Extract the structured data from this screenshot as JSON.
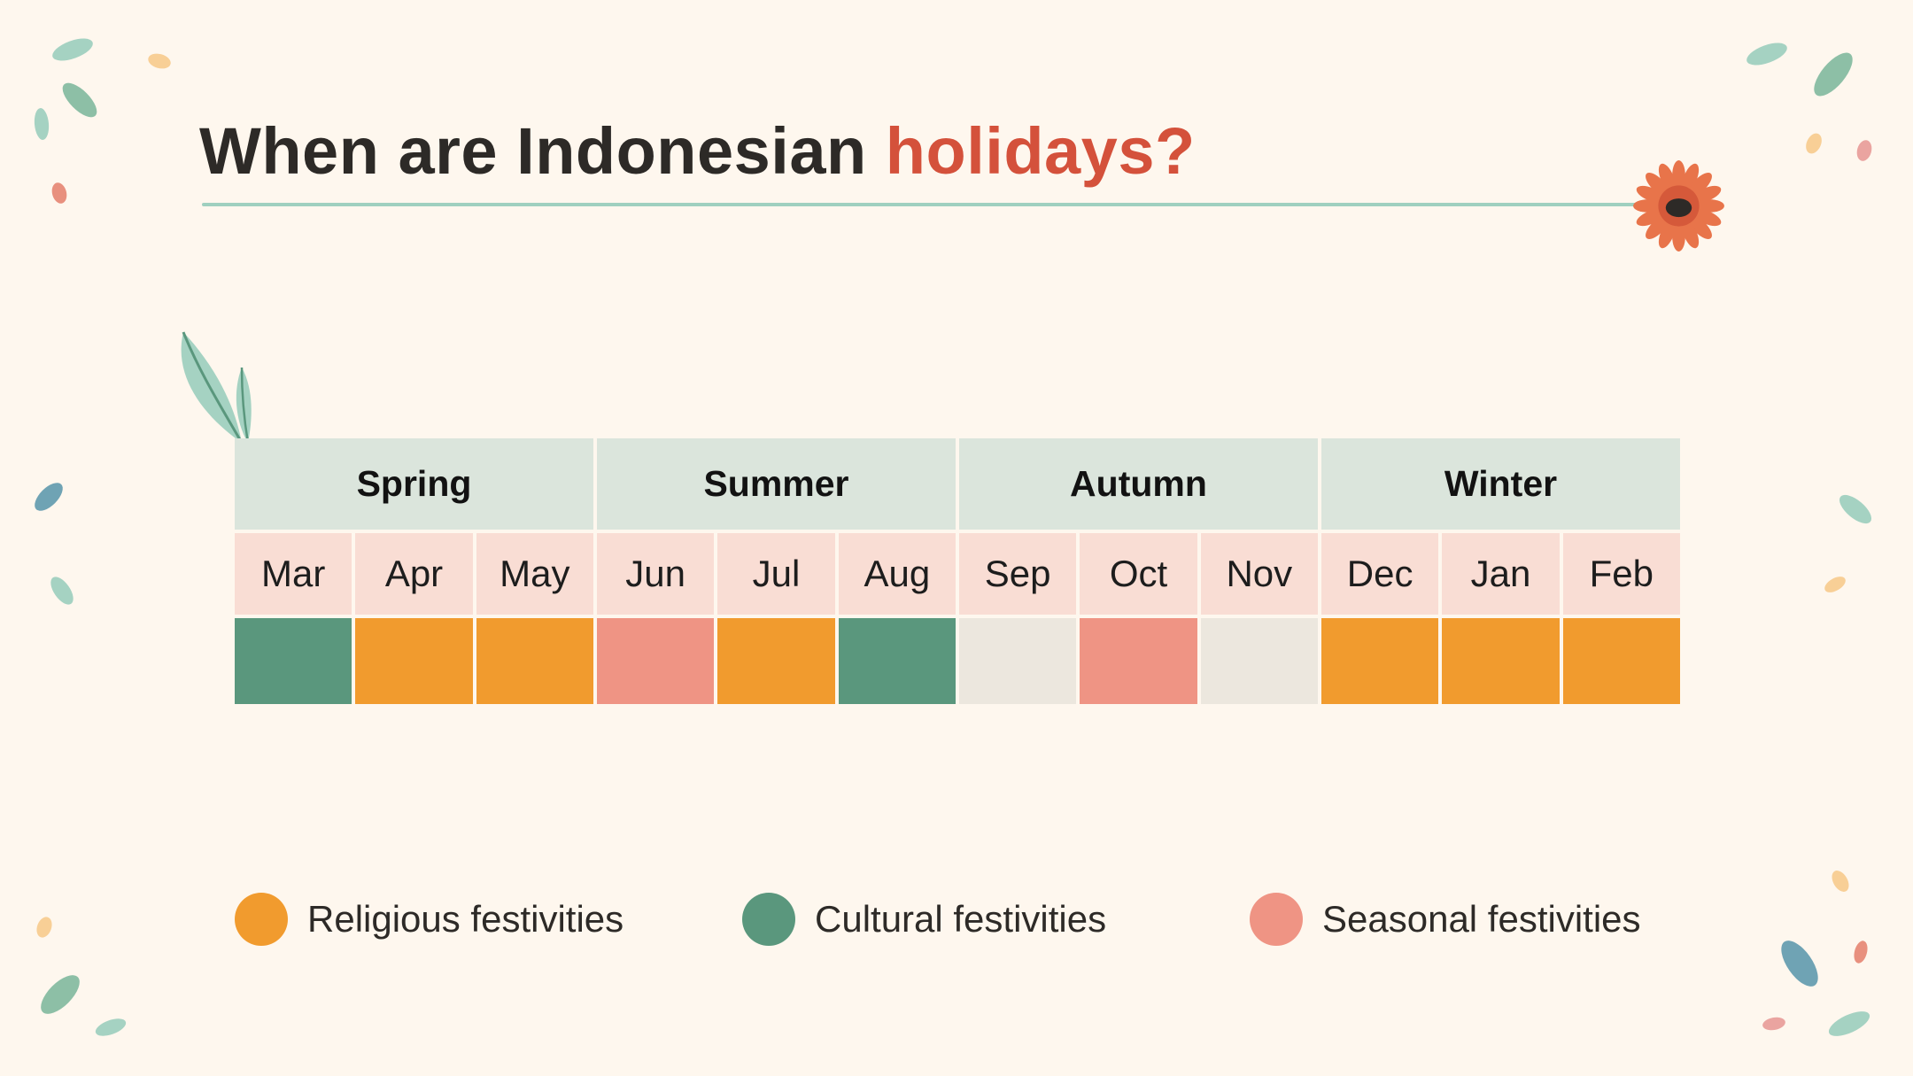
{
  "title": {
    "prefix": "When are Indonesian ",
    "accent": "holidays?"
  },
  "seasons": [
    {
      "label": "Spring"
    },
    {
      "label": "Summer"
    },
    {
      "label": "Autumn"
    },
    {
      "label": "Winter"
    }
  ],
  "months": [
    "Mar",
    "Apr",
    "May",
    "Jun",
    "Jul",
    "Aug",
    "Sep",
    "Oct",
    "Nov",
    "Dec",
    "Jan",
    "Feb"
  ],
  "month_categories": [
    "cultural",
    "religious",
    "religious",
    "seasonal",
    "religious",
    "cultural",
    "none",
    "seasonal",
    "none",
    "religious",
    "religious",
    "religious"
  ],
  "legend": {
    "religious": {
      "label": "Religious festivities",
      "color": "#f19b2e"
    },
    "cultural": {
      "label": "Cultural festivities",
      "color": "#5a977d"
    },
    "seasonal": {
      "label": "Seasonal festivities",
      "color": "#ef9484"
    }
  },
  "colors": {
    "background": "#fef7ee",
    "title_accent": "#d4513b",
    "season_header": "#dbe5dc",
    "month_header": "#f9ddd4",
    "empty_cell": "#ece7de"
  }
}
